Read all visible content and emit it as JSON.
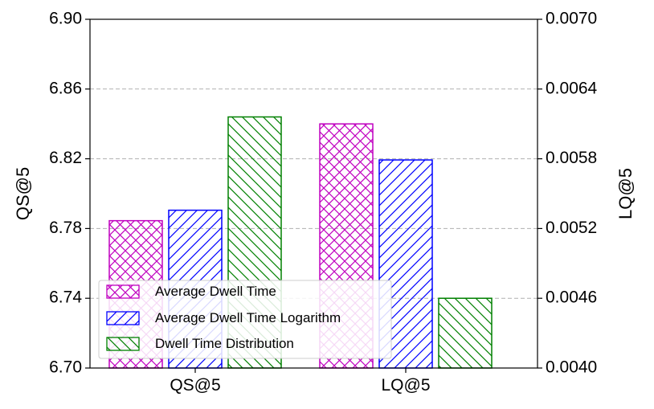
{
  "chart_data": {
    "type": "bar",
    "categories": [
      "QS@5",
      "LQ@5"
    ],
    "series": [
      {
        "name": "Average Dwell Time",
        "values": [
          6.7845,
          0.0061
        ],
        "color": "#c000c0",
        "hatch": "crosshatch"
      },
      {
        "name": "Average Dwell Time Logarithm",
        "values": [
          6.7905,
          0.00579
        ],
        "color": "#0000ff",
        "hatch": "forward"
      },
      {
        "name": "Dwell Time Distribution",
        "values": [
          6.844,
          0.0046
        ],
        "color": "#008000",
        "hatch": "back"
      }
    ],
    "ylabel_left": "QS@5",
    "ylabel_right": "LQ@5",
    "ylim_left": [
      6.7,
      6.9
    ],
    "ylim_right": [
      0.004,
      0.007
    ],
    "yticks_left": [
      "6.70",
      "6.74",
      "6.78",
      "6.82",
      "6.86",
      "6.90"
    ],
    "yticks_right": [
      "0.0040",
      "0.0046",
      "0.0052",
      "0.0058",
      "0.0064",
      "0.0070"
    ],
    "axis_by_category": [
      "left",
      "right"
    ],
    "grid": "horizontal dashed",
    "legend_position": "lower-left"
  }
}
